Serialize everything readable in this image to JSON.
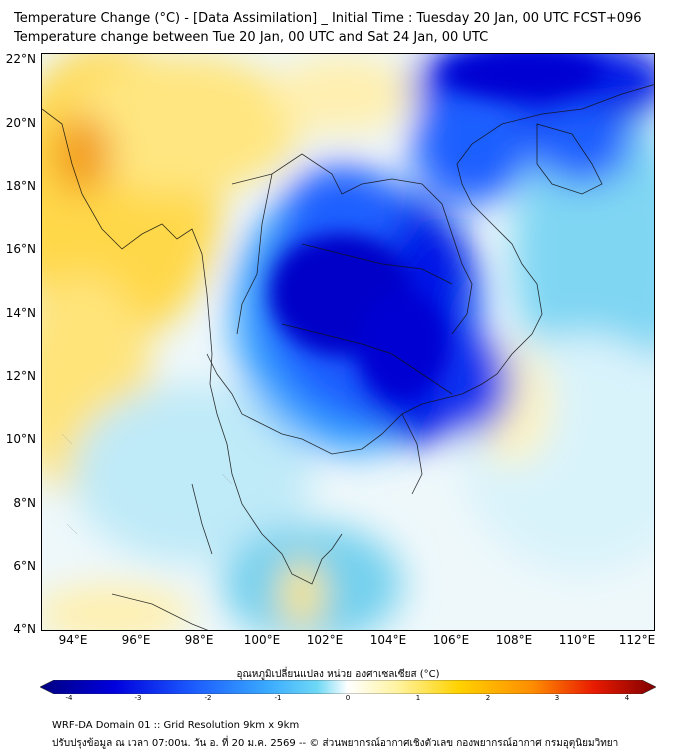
{
  "header": {
    "title_line1": "Temperature Change (°C) - [Data Assimilation] _ Initial Time : Tuesday 20 Jan, 00 UTC FCST+096",
    "title_line2": "Temperature change between Tue 20 Jan, 00 UTC and Sat 24 Jan, 00 UTC"
  },
  "map": {
    "lat_labels": [
      "22°N",
      "20°N",
      "18°N",
      "16°N",
      "14°N",
      "12°N",
      "10°N",
      "8°N",
      "6°N",
      "4°N"
    ],
    "lon_labels": [
      "94°E",
      "96°E",
      "98°E",
      "100°E",
      "102°E",
      "104°E",
      "106°E",
      "108°E",
      "110°E",
      "112°E"
    ],
    "lat_range": [
      4,
      22.3
    ],
    "lon_range": [
      93,
      112.5
    ]
  },
  "colorbar": {
    "title": "อุณหภูมิเปลี่ยนแปลง หน่วย องศาเซลเซียส (°C)",
    "min": -4,
    "max": 4,
    "tick_labels": [
      "-4",
      "-3",
      "-2",
      "-1",
      "0",
      "1",
      "2",
      "3",
      "4"
    ],
    "colors": [
      "#000080",
      "#0000dd",
      "#1c5cff",
      "#3aaaff",
      "#6ed8f5",
      "#ffffff",
      "#fff3a0",
      "#ffd200",
      "#ff8c00",
      "#e81a00",
      "#800000"
    ]
  },
  "footer": {
    "line1": "WRF-DA Domain 01 :: Grid Resolution 9km x 9km",
    "line2": "ปรับปรุงข้อมูล ณ เวลา 07:00น. วัน อ. ที่ 20 ม.ค. 2569 -- © ส่วนพยากรณ์อากาศเชิงตัวเลข กองพยากรณ์อากาศ กรมอุตุนิยมวิทยา"
  }
}
